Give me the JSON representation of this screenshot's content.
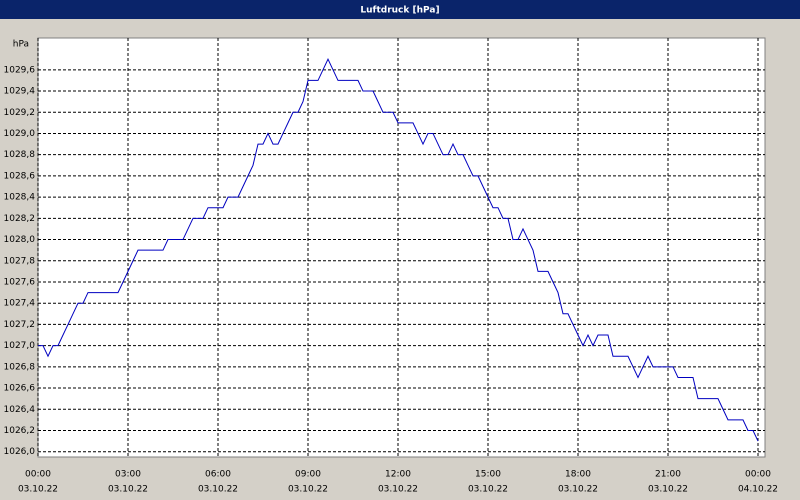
{
  "chart_data": {
    "type": "line",
    "title": "Luftdruck [hPa]",
    "y_label": "hPa",
    "x": [
      0,
      10,
      20,
      30,
      40,
      50,
      60,
      70,
      80,
      90,
      100,
      110,
      120,
      130,
      140,
      150,
      160,
      170,
      180,
      190,
      200,
      210,
      220,
      230,
      240,
      250,
      260,
      270,
      280,
      290,
      300,
      310,
      320,
      330,
      340,
      350,
      360,
      370,
      380,
      390,
      400,
      410,
      420,
      430,
      440,
      450,
      460,
      470,
      480,
      490,
      500,
      510,
      520,
      530,
      540,
      550,
      560,
      570,
      580,
      590,
      600,
      610,
      620,
      630,
      640,
      650,
      660,
      670,
      680,
      690,
      700,
      710,
      720,
      730,
      740,
      750,
      760,
      770,
      780,
      790,
      800,
      810,
      820,
      830,
      840,
      850,
      860,
      870,
      880,
      890,
      900,
      910,
      920,
      930,
      940,
      950,
      960,
      970,
      980,
      990,
      1000,
      1010,
      1020,
      1030,
      1040,
      1050,
      1060,
      1070,
      1080,
      1090,
      1100,
      1110,
      1120,
      1130,
      1140,
      1150,
      1160,
      1170,
      1180,
      1190,
      1200,
      1210,
      1220,
      1230,
      1240,
      1250,
      1260,
      1270,
      1280,
      1290,
      1300,
      1310,
      1320,
      1330,
      1340,
      1350,
      1360,
      1370,
      1380,
      1390,
      1400,
      1410,
      1420,
      1430,
      1440
    ],
    "series": [
      {
        "color": "#0000c0",
        "values": [
          1027.0,
          1027.0,
          1026.9,
          1027.0,
          1027.0,
          1027.1,
          1027.2,
          1027.3,
          1027.4,
          1027.4,
          1027.5,
          1027.5,
          1027.5,
          1027.5,
          1027.5,
          1027.5,
          1027.5,
          1027.6,
          1027.7,
          1027.8,
          1027.9,
          1027.9,
          1027.9,
          1027.9,
          1027.9,
          1027.9,
          1028.0,
          1028.0,
          1028.0,
          1028.0,
          1028.1,
          1028.2,
          1028.2,
          1028.2,
          1028.3,
          1028.3,
          1028.3,
          1028.3,
          1028.4,
          1028.4,
          1028.4,
          1028.5,
          1028.6,
          1028.7,
          1028.9,
          1028.9,
          1029.0,
          1028.9,
          1028.9,
          1029.0,
          1029.1,
          1029.2,
          1029.2,
          1029.3,
          1029.5,
          1029.5,
          1029.5,
          1029.6,
          1029.7,
          1029.6,
          1029.5,
          1029.5,
          1029.5,
          1029.5,
          1029.5,
          1029.4,
          1029.4,
          1029.4,
          1029.3,
          1029.2,
          1029.2,
          1029.2,
          1029.1,
          1029.1,
          1029.1,
          1029.1,
          1029.0,
          1028.9,
          1029.0,
          1029.0,
          1028.9,
          1028.8,
          1028.8,
          1028.9,
          1028.8,
          1028.8,
          1028.7,
          1028.6,
          1028.6,
          1028.5,
          1028.4,
          1028.3,
          1028.3,
          1028.2,
          1028.2,
          1028.0,
          1028.0,
          1028.1,
          1028.0,
          1027.9,
          1027.7,
          1027.7,
          1027.7,
          1027.6,
          1027.5,
          1027.3,
          1027.3,
          1027.2,
          1027.1,
          1027.0,
          1027.1,
          1027.0,
          1027.1,
          1027.1,
          1027.1,
          1026.9,
          1026.9,
          1026.9,
          1026.9,
          1026.8,
          1026.7,
          1026.8,
          1026.9,
          1026.8,
          1026.8,
          1026.8,
          1026.8,
          1026.8,
          1026.7,
          1026.7,
          1026.7,
          1026.7,
          1026.5,
          1026.5,
          1026.5,
          1026.5,
          1026.5,
          1026.4,
          1026.3,
          1026.3,
          1026.3,
          1026.3,
          1026.2,
          1026.2,
          1026.1
        ]
      }
    ],
    "xlim": [
      0,
      1440
    ],
    "xticks": [
      {
        "value": 0,
        "label": "00:00",
        "date": "03.10.22"
      },
      {
        "value": 180,
        "label": "03:00",
        "date": "03.10.22"
      },
      {
        "value": 360,
        "label": "06:00",
        "date": "03.10.22"
      },
      {
        "value": 540,
        "label": "09:00",
        "date": "03.10.22"
      },
      {
        "value": 720,
        "label": "12:00",
        "date": "03.10.22"
      },
      {
        "value": 900,
        "label": "15:00",
        "date": "03.10.22"
      },
      {
        "value": 1080,
        "label": "18:00",
        "date": "03.10.22"
      },
      {
        "value": 1260,
        "label": "21:00",
        "date": "03.10.22"
      },
      {
        "value": 1440,
        "label": "00:00",
        "date": "04.10.22"
      }
    ],
    "ylim": [
      1025.95,
      1029.9
    ],
    "yticks": [
      {
        "value": 1026.0,
        "label": "1026,0"
      },
      {
        "value": 1026.2,
        "label": "1026,2"
      },
      {
        "value": 1026.4,
        "label": "1026,4"
      },
      {
        "value": 1026.6,
        "label": "1026,6"
      },
      {
        "value": 1026.8,
        "label": "1026,8"
      },
      {
        "value": 1027.0,
        "label": "1027,0"
      },
      {
        "value": 1027.2,
        "label": "1027,2"
      },
      {
        "value": 1027.4,
        "label": "1027,4"
      },
      {
        "value": 1027.6,
        "label": "1027,6"
      },
      {
        "value": 1027.8,
        "label": "1027,8"
      },
      {
        "value": 1028.0,
        "label": "1028,0"
      },
      {
        "value": 1028.2,
        "label": "1028,2"
      },
      {
        "value": 1028.4,
        "label": "1028,4"
      },
      {
        "value": 1028.6,
        "label": "1028,6"
      },
      {
        "value": 1028.8,
        "label": "1028,8"
      },
      {
        "value": 1029.0,
        "label": "1029,0"
      },
      {
        "value": 1029.2,
        "label": "1029,2"
      },
      {
        "value": 1029.4,
        "label": "1029,4"
      },
      {
        "value": 1029.6,
        "label": "1029,6"
      }
    ],
    "grid": true
  }
}
